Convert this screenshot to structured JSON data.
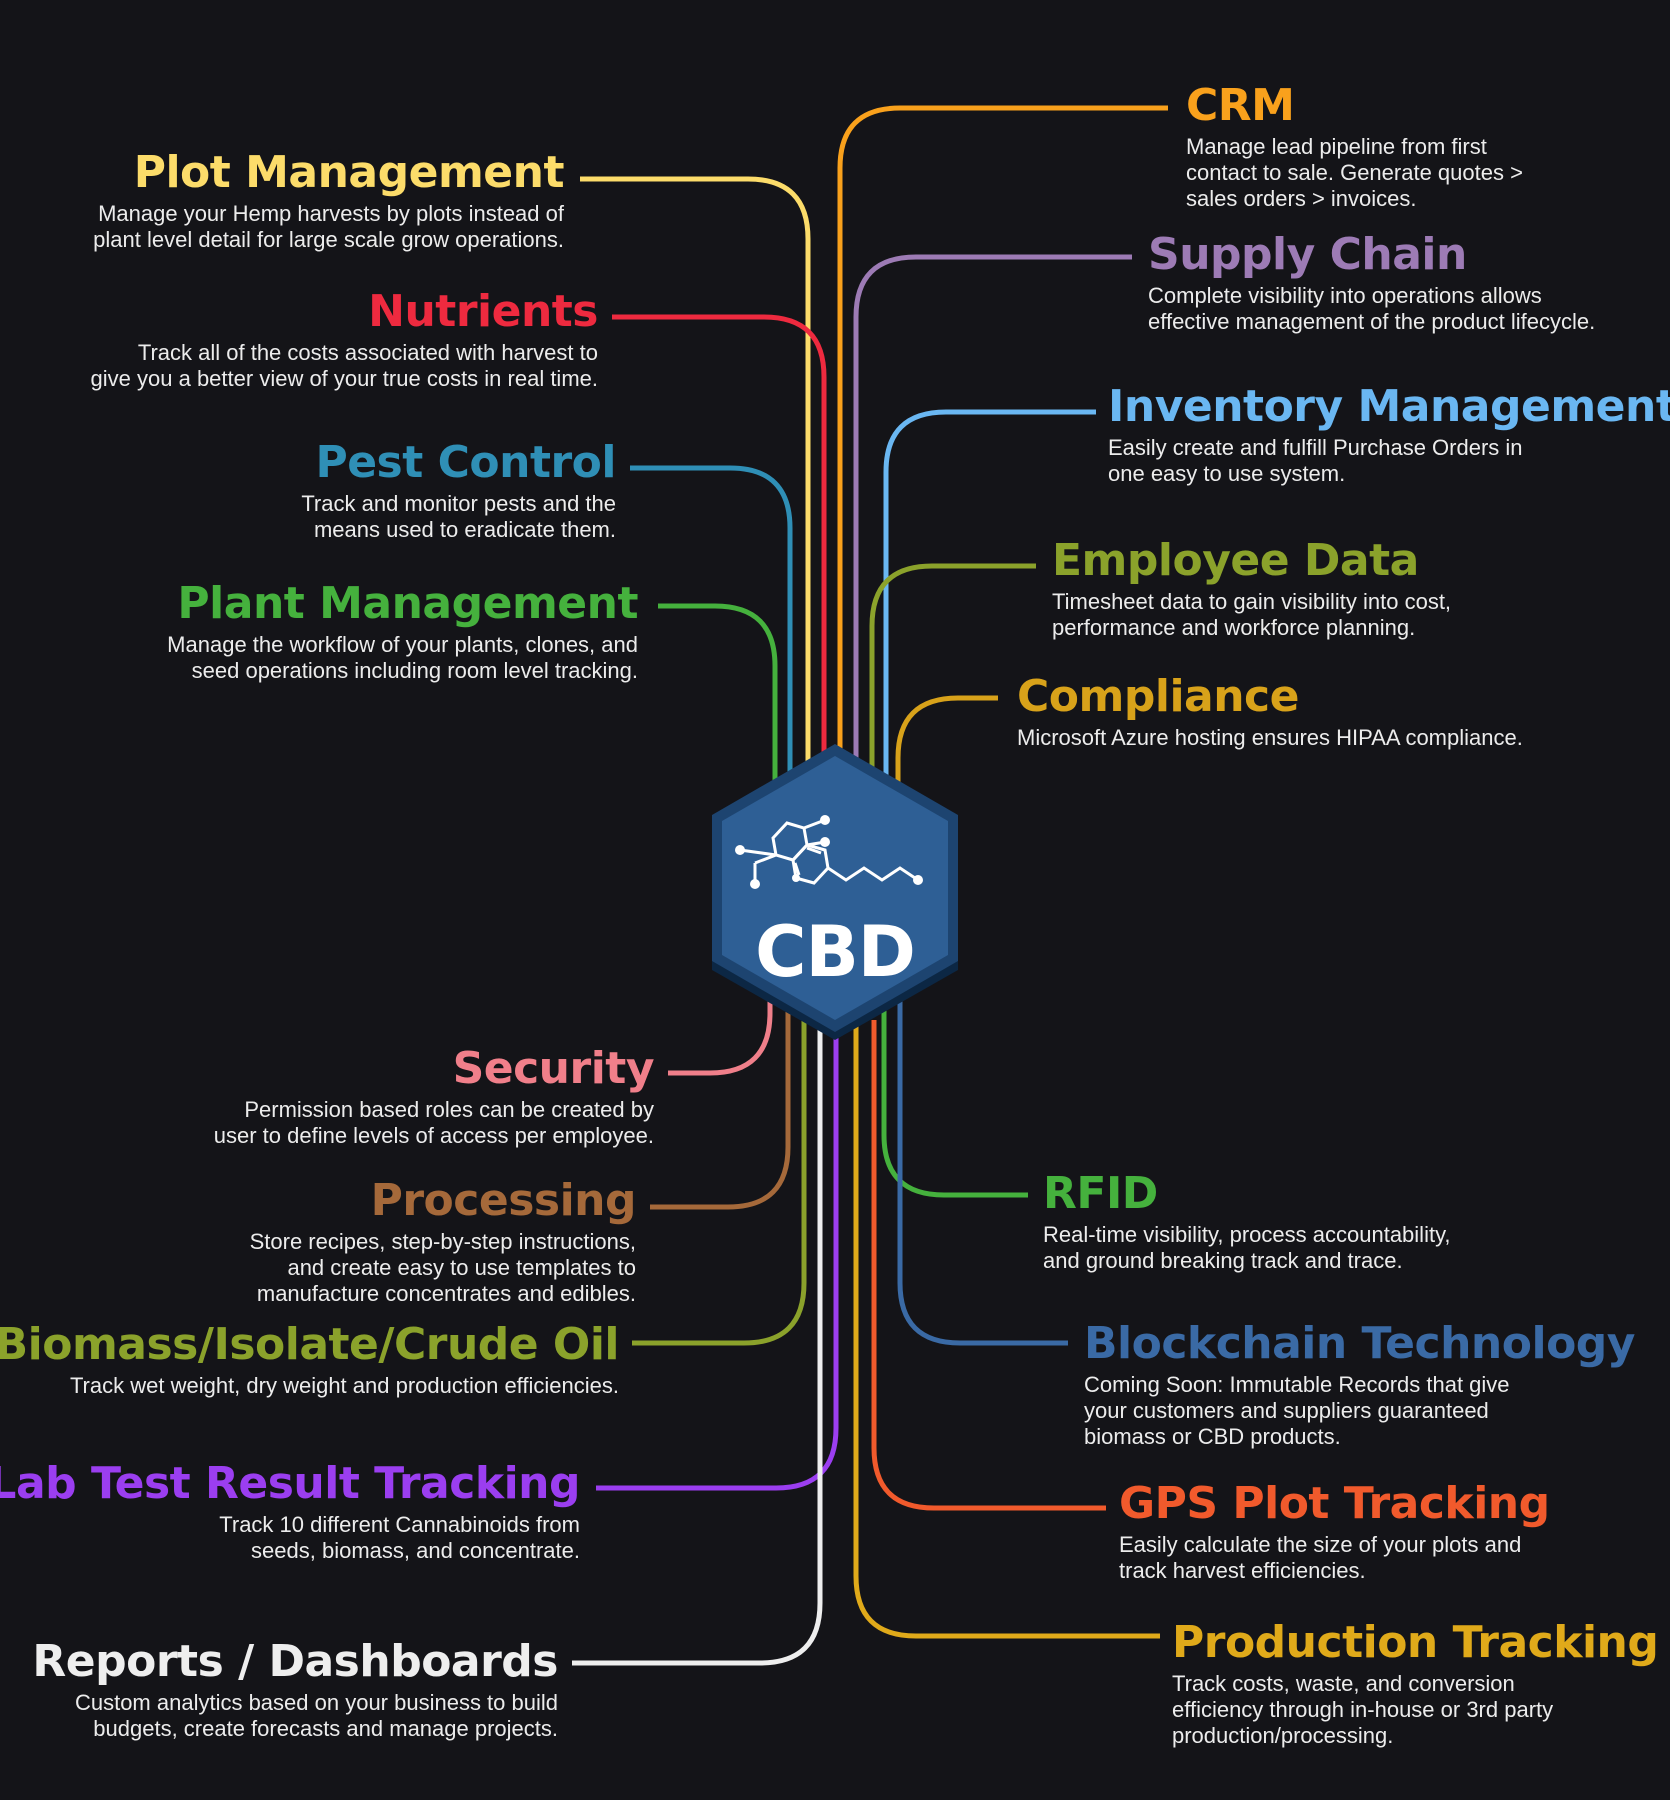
{
  "hub": {
    "label": "CBD",
    "fill": "#2e5f95",
    "border": "#1d4470"
  },
  "left_features": [
    {
      "id": "plot-management",
      "title": "Plot Management",
      "color": "#fcdc6a",
      "desc": [
        "Manage your Hemp harvests by plots instead of",
        "plant level detail for large scale grow operations."
      ]
    },
    {
      "id": "nutrients",
      "title": "Nutrients",
      "color": "#ee2a3f",
      "desc": [
        "Track all of the costs associated with harvest to",
        "give you a better view of your true costs in real time."
      ]
    },
    {
      "id": "pest-control",
      "title": "Pest Control",
      "color": "#2f8fb6",
      "desc": [
        "Track and monitor pests and the",
        "means used to eradicate them."
      ]
    },
    {
      "id": "plant-management",
      "title": "Plant Management",
      "color": "#45b13d",
      "desc": [
        "Manage the workflow of your plants, clones, and",
        "seed operations including room level tracking."
      ]
    },
    {
      "id": "security",
      "title": "Security",
      "color": "#f07f8a",
      "desc": [
        "Permission based roles can be created by",
        "user to define levels of access per employee."
      ]
    },
    {
      "id": "processing",
      "title": "Processing",
      "color": "#a5693a",
      "desc": [
        "Store recipes, step-by-step instructions,",
        "and create easy to use templates to",
        "manufacture concentrates and edibles."
      ]
    },
    {
      "id": "biomass",
      "title": "Biomass/Isolate/Crude Oil",
      "color": "#8ba22b",
      "desc": [
        "Track wet weight, dry weight and production efficiencies."
      ]
    },
    {
      "id": "lab-test",
      "title": "Lab Test Result Tracking",
      "color": "#9b3ef0",
      "desc": [
        "Track 10 different Cannabinoids from",
        "seeds, biomass, and concentrate."
      ]
    },
    {
      "id": "reports",
      "title": "Reports / Dashboards",
      "color": "#eeeeee",
      "desc": [
        "Custom analytics based on your business to build",
        "budgets, create forecasts and manage projects."
      ]
    }
  ],
  "right_features": [
    {
      "id": "crm",
      "title": "CRM",
      "color": "#f9a11c",
      "desc": [
        "Manage lead pipeline from first",
        "contact to sale. Generate quotes >",
        "sales orders > invoices."
      ]
    },
    {
      "id": "supply-chain",
      "title": "Supply Chain",
      "color": "#9d7bb5",
      "desc": [
        "Complete visibility into operations allows",
        "effective management of the product lifecycle."
      ]
    },
    {
      "id": "inventory-management",
      "title": "Inventory Management",
      "color": "#6ab7f2",
      "desc": [
        "Easily create and fulfill Purchase Orders in",
        "one easy to use system."
      ]
    },
    {
      "id": "employee-data",
      "title": "Employee Data",
      "color": "#8ba22b",
      "desc": [
        "Timesheet data to gain visibility into cost,",
        "performance and workforce planning."
      ]
    },
    {
      "id": "compliance",
      "title": "Compliance",
      "color": "#d8a21a",
      "desc": [
        "Microsoft Azure hosting ensures HIPAA compliance."
      ]
    },
    {
      "id": "rfid",
      "title": "RFID",
      "color": "#45b13d",
      "desc": [
        "Real-time visibility, process accountability,",
        "and ground breaking track and trace."
      ]
    },
    {
      "id": "blockchain",
      "title": "Blockchain Technology",
      "color": "#3a6aa5",
      "desc": [
        "Coming Soon:  Immutable Records that give",
        "your customers and suppliers guaranteed",
        "biomass or CBD products."
      ]
    },
    {
      "id": "gps-plot",
      "title": "GPS Plot Tracking",
      "color": "#f15a2c",
      "desc": [
        "Easily calculate the size of your plots and",
        "track harvest efficiencies."
      ]
    },
    {
      "id": "production-tracking",
      "title": "Production Tracking",
      "color": "#e0aa1a",
      "desc": [
        "Track costs, waste, and conversion",
        "efficiency through in-house or 3rd party",
        "production/processing."
      ]
    }
  ]
}
